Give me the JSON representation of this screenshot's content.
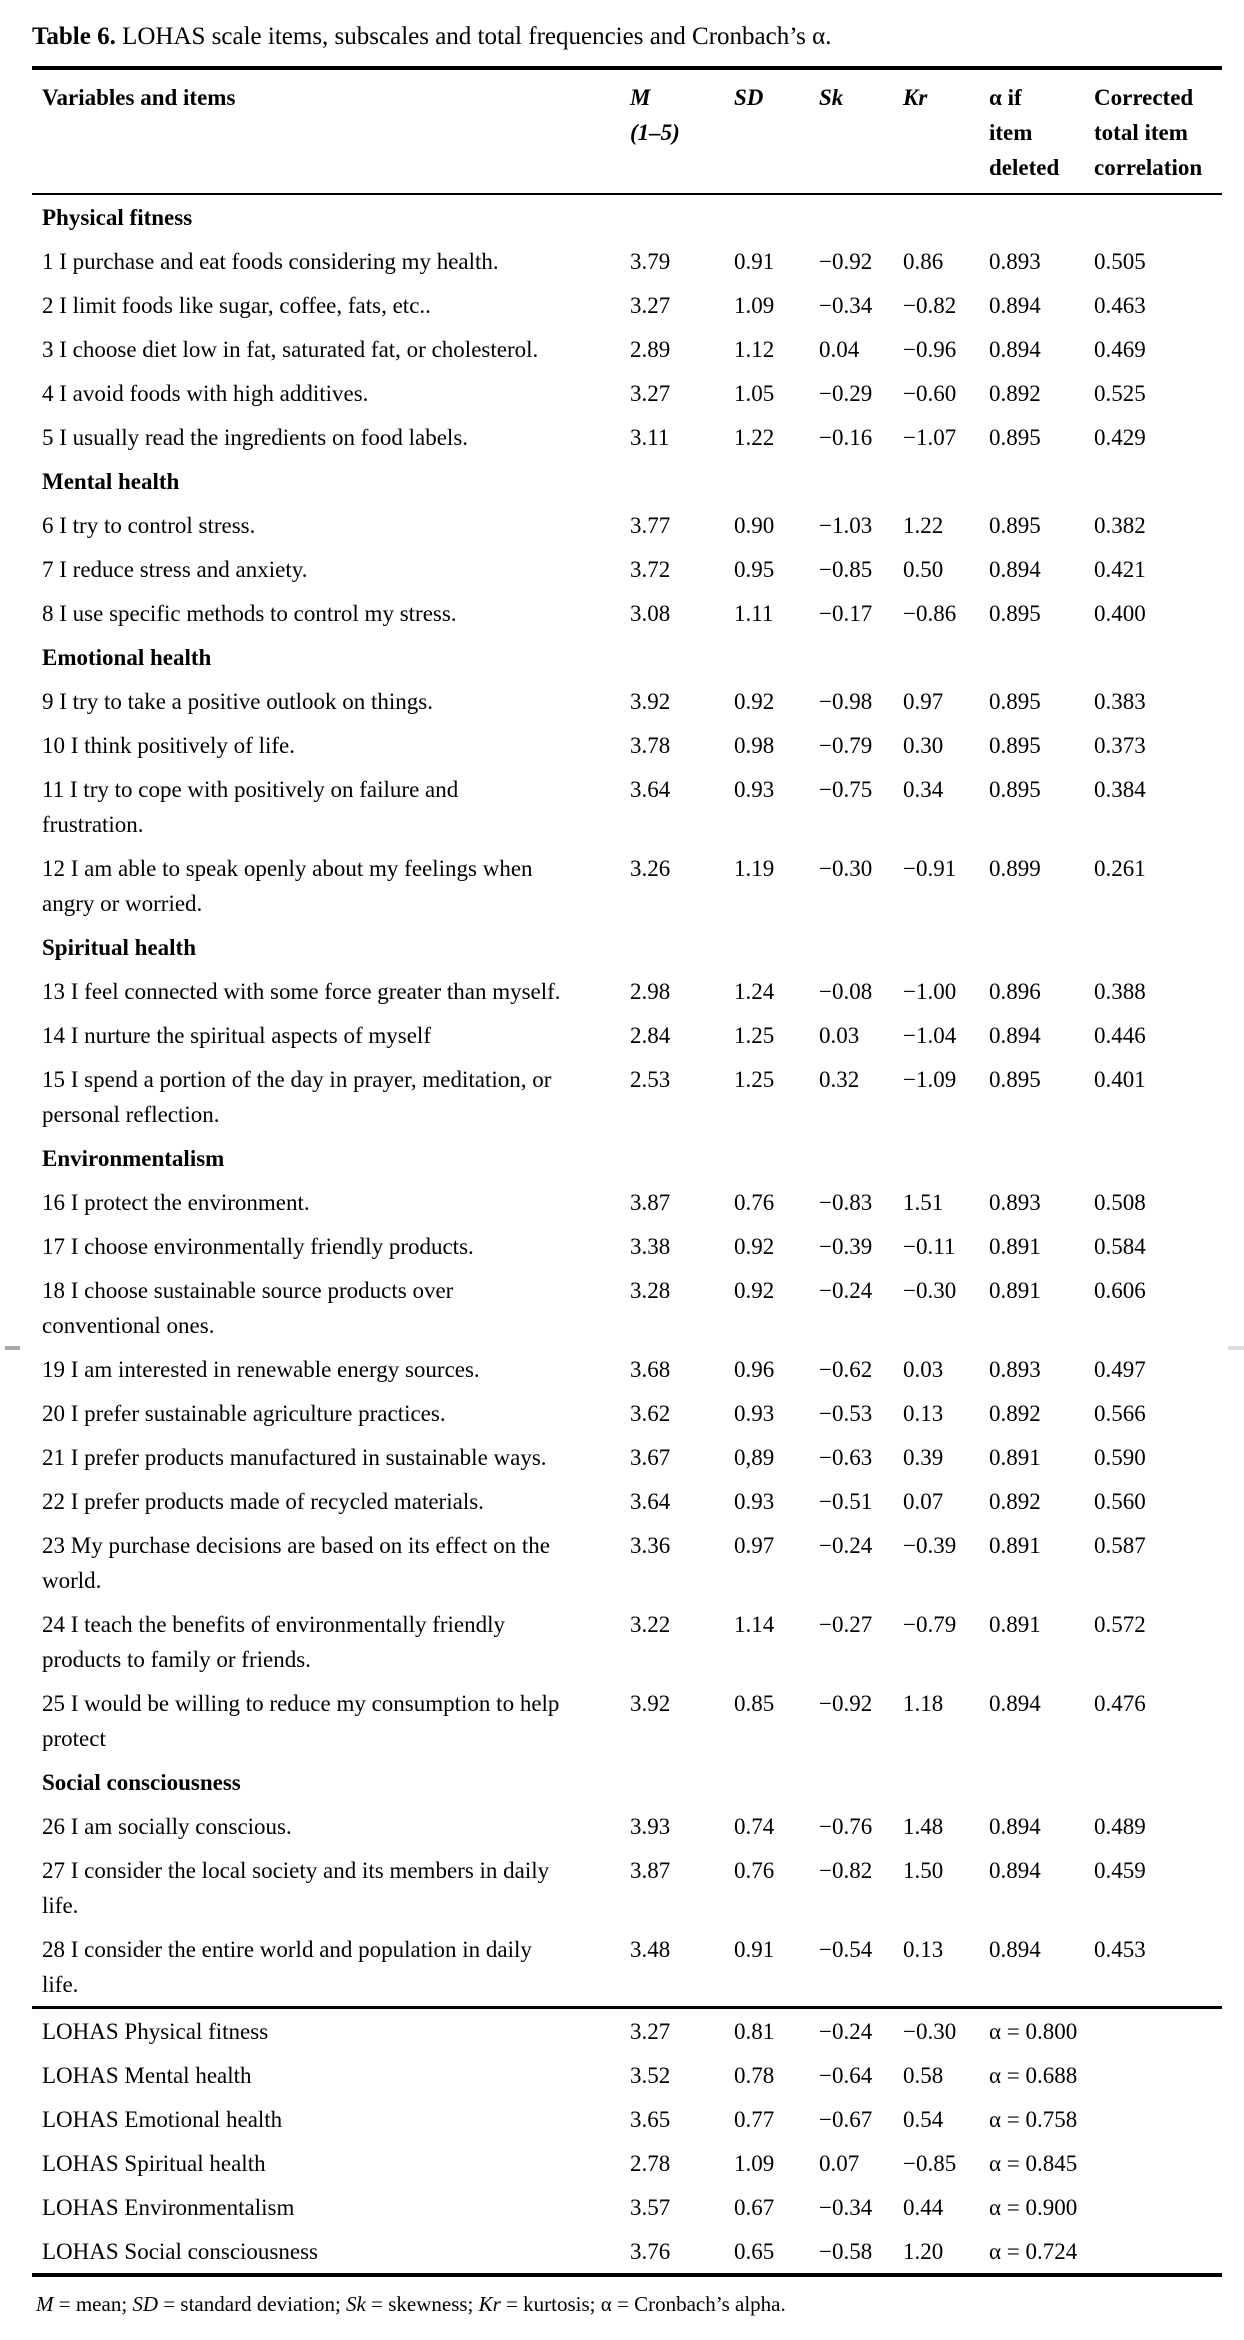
{
  "caption": {
    "label": "Table 6.",
    "text": "LOHAS scale items, subscales and total frequencies and Cronbach’s α."
  },
  "columns": {
    "variables": "Variables and items",
    "m": "M\n(1–5)",
    "sd": "SD",
    "sk": "Sk",
    "kr": "Kr",
    "alpha": "α if\nitem\ndeleted",
    "corrected": "Corrected\ntotal item\ncorrelation"
  },
  "sections": [
    {
      "header": "Physical fitness",
      "rows": [
        {
          "item": "1 I purchase and eat foods considering my health.",
          "m": "3.79",
          "sd": "0.91",
          "sk": "−0.92",
          "kr": "0.86",
          "alpha": "0.893",
          "corr": "0.505"
        },
        {
          "item": "2 I limit foods like sugar, coffee, fats, etc..",
          "m": "3.27",
          "sd": "1.09",
          "sk": "−0.34",
          "kr": "−0.82",
          "alpha": "0.894",
          "corr": "0.463"
        },
        {
          "item": "3 I choose diet low in fat, saturated fat, or cholesterol.",
          "m": "2.89",
          "sd": "1.12",
          "sk": "0.04",
          "kr": "−0.96",
          "alpha": "0.894",
          "corr": "0.469"
        },
        {
          "item": "4 I avoid foods with high additives.",
          "m": "3.27",
          "sd": "1.05",
          "sk": "−0.29",
          "kr": "−0.60",
          "alpha": "0.892",
          "corr": "0.525"
        },
        {
          "item": "5 I usually read the ingredients on food labels.",
          "m": "3.11",
          "sd": "1.22",
          "sk": "−0.16",
          "kr": "−1.07",
          "alpha": "0.895",
          "corr": "0.429"
        }
      ]
    },
    {
      "header": "Mental health",
      "rows": [
        {
          "item": "6 I try to control stress.",
          "m": "3.77",
          "sd": "0.90",
          "sk": "−1.03",
          "kr": "1.22",
          "alpha": "0.895",
          "corr": "0.382"
        },
        {
          "item": "7 I reduce stress and anxiety.",
          "m": "3.72",
          "sd": "0.95",
          "sk": "−0.85",
          "kr": "0.50",
          "alpha": "0.894",
          "corr": "0.421"
        },
        {
          "item": "8 I use specific methods to control my stress.",
          "m": "3.08",
          "sd": "1.11",
          "sk": "−0.17",
          "kr": "−0.86",
          "alpha": "0.895",
          "corr": "0.400"
        }
      ]
    },
    {
      "header": "Emotional health",
      "rows": [
        {
          "item": "9 I try to take a positive outlook on things.",
          "m": "3.92",
          "sd": "0.92",
          "sk": "−0.98",
          "kr": "0.97",
          "alpha": "0.895",
          "corr": "0.383"
        },
        {
          "item": "10 I think positively of life.",
          "m": "3.78",
          "sd": "0.98",
          "sk": "−0.79",
          "kr": "0.30",
          "alpha": "0.895",
          "corr": "0.373"
        },
        {
          "item": "11 I try to cope with positively on failure and\nfrustration.",
          "m": "3.64",
          "sd": "0.93",
          "sk": "−0.75",
          "kr": "0.34",
          "alpha": "0.895",
          "corr": "0.384"
        },
        {
          "item": "12 I am able to speak openly about my feelings when\nangry or worried.",
          "m": "3.26",
          "sd": "1.19",
          "sk": "−0.30",
          "kr": "−0.91",
          "alpha": "0.899",
          "corr": "0.261"
        }
      ]
    },
    {
      "header": "Spiritual health",
      "rows": [
        {
          "item": "13 I feel connected with some force greater than myself.",
          "m": "2.98",
          "sd": "1.24",
          "sk": "−0.08",
          "kr": "−1.00",
          "alpha": "0.896",
          "corr": "0.388"
        },
        {
          "item": "14 I nurture the spiritual aspects of myself",
          "m": "2.84",
          "sd": "1.25",
          "sk": "0.03",
          "kr": "−1.04",
          "alpha": "0.894",
          "corr": "0.446"
        },
        {
          "item": "15 I spend a portion of the day in prayer, meditation, or\npersonal reflection.",
          "m": "2.53",
          "sd": "1.25",
          "sk": "0.32",
          "kr": "−1.09",
          "alpha": "0.895",
          "corr": "0.401"
        }
      ]
    },
    {
      "header": "Environmentalism",
      "rows": [
        {
          "item": "16 I protect the environment.",
          "m": "3.87",
          "sd": "0.76",
          "sk": "−0.83",
          "kr": "1.51",
          "alpha": "0.893",
          "corr": "0.508"
        },
        {
          "item": "17 I choose environmentally friendly products.",
          "m": "3.38",
          "sd": "0.92",
          "sk": "−0.39",
          "kr": "−0.11",
          "alpha": "0.891",
          "corr": "0.584"
        },
        {
          "item": "18 I choose sustainable source products over\nconventional ones.",
          "m": "3.28",
          "sd": "0.92",
          "sk": "−0.24",
          "kr": "−0.30",
          "alpha": "0.891",
          "corr": "0.606"
        },
        {
          "item": "19 I am interested in renewable energy sources.",
          "m": "3.68",
          "sd": "0.96",
          "sk": "−0.62",
          "kr": "0.03",
          "alpha": "0.893",
          "corr": "0.497"
        },
        {
          "item": "20 I prefer sustainable agriculture practices.",
          "m": "3.62",
          "sd": "0.93",
          "sk": "−0.53",
          "kr": "0.13",
          "alpha": "0.892",
          "corr": "0.566"
        },
        {
          "item": "21 I prefer products manufactured in sustainable ways.",
          "m": "3.67",
          "sd": "0,89",
          "sk": "−0.63",
          "kr": "0.39",
          "alpha": "0.891",
          "corr": "0.590"
        },
        {
          "item": "22 I prefer products made of recycled materials.",
          "m": "3.64",
          "sd": "0.93",
          "sk": "−0.51",
          "kr": "0.07",
          "alpha": "0.892",
          "corr": "0.560"
        },
        {
          "item": "23 My purchase decisions are based on its effect on the\nworld.",
          "m": "3.36",
          "sd": "0.97",
          "sk": "−0.24",
          "kr": "−0.39",
          "alpha": "0.891",
          "corr": "0.587"
        },
        {
          "item": "24 I teach the benefits of environmentally friendly\nproducts to family or friends.",
          "m": "3.22",
          "sd": "1.14",
          "sk": "−0.27",
          "kr": "−0.79",
          "alpha": "0.891",
          "corr": "0.572"
        },
        {
          "item": "25 I would be willing to reduce my consumption to help\nprotect",
          "m": "3.92",
          "sd": "0.85",
          "sk": "−0.92",
          "kr": "1.18",
          "alpha": "0.894",
          "corr": "0.476"
        }
      ]
    },
    {
      "header": "Social consciousness",
      "rows": [
        {
          "item": "26 I am socially conscious.",
          "m": "3.93",
          "sd": "0.74",
          "sk": "−0.76",
          "kr": "1.48",
          "alpha": "0.894",
          "corr": "0.489"
        },
        {
          "item": "27 I consider the local society and its members in daily\nlife.",
          "m": "3.87",
          "sd": "0.76",
          "sk": "−0.82",
          "kr": "1.50",
          "alpha": "0.894",
          "corr": "0.459"
        },
        {
          "item": "28 I consider the entire world and population in daily\nlife.",
          "m": "3.48",
          "sd": "0.91",
          "sk": "−0.54",
          "kr": "0.13",
          "alpha": "0.894",
          "corr": "0.453"
        }
      ]
    }
  ],
  "totals": [
    {
      "label": "LOHAS Physical fitness",
      "m": "3.27",
      "sd": "0.81",
      "sk": "−0.24",
      "kr": "−0.30",
      "alpha": "α = 0.800"
    },
    {
      "label": "LOHAS Mental health",
      "m": "3.52",
      "sd": "0.78",
      "sk": "−0.64",
      "kr": "0.58",
      "alpha": "α = 0.688"
    },
    {
      "label": "LOHAS Emotional health",
      "m": "3.65",
      "sd": "0.77",
      "sk": "−0.67",
      "kr": "0.54",
      "alpha": "α = 0.758"
    },
    {
      "label": "LOHAS Spiritual health",
      "m": "2.78",
      "sd": "1.09",
      "sk": "0.07",
      "kr": "−0.85",
      "alpha": "α = 0.845"
    },
    {
      "label": "LOHAS Environmentalism",
      "m": "3.57",
      "sd": "0.67",
      "sk": "−0.34",
      "kr": "0.44",
      "alpha": "α = 0.900"
    },
    {
      "label": "LOHAS Social consciousness",
      "m": "3.76",
      "sd": "0.65",
      "sk": "−0.58",
      "kr": "1.20",
      "alpha": "α = 0.724"
    }
  ],
  "footnote_parts": [
    {
      "text": "M",
      "italic": true
    },
    {
      "text": " = mean; ",
      "italic": false
    },
    {
      "text": "SD",
      "italic": true
    },
    {
      "text": " = standard deviation; ",
      "italic": false
    },
    {
      "text": "Sk",
      "italic": true
    },
    {
      "text": " = skewness; ",
      "italic": false
    },
    {
      "text": "Kr",
      "italic": true
    },
    {
      "text": " = kurtosis; α = Cronbach’s alpha.",
      "italic": false
    }
  ]
}
